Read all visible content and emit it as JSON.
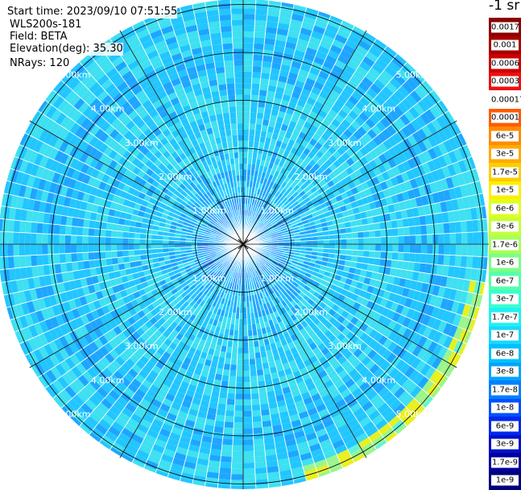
{
  "header": {
    "start_time": "Start time: 2023/09/10 07:51:55",
    "instrument": "WLS200s-181",
    "field": "Field: BETA",
    "elevation": "Elevation(deg): 35.30",
    "nrays": "NRays: 120"
  },
  "colorbar": {
    "units_label": "-1 sr",
    "levels": [
      {
        "label": "0.0017",
        "color": "#8b0000"
      },
      {
        "label": "0.001",
        "color": "#a80000"
      },
      {
        "label": "0.0006",
        "color": "#cc0000"
      },
      {
        "label": "0.0003",
        "color": "#ee1010"
      },
      {
        "label": "0.00017",
        "color": "#ffffff"
      },
      {
        "label": "0.0001",
        "color": "#ff5a00"
      },
      {
        "label": "6e-5",
        "color": "#ff8c00"
      },
      {
        "label": "3e-5",
        "color": "#ffaa00"
      },
      {
        "label": "1.7e-5",
        "color": "#ffcc00"
      },
      {
        "label": "1e-5",
        "color": "#ffee00"
      },
      {
        "label": "6e-6",
        "color": "#e0ff20"
      },
      {
        "label": "3e-6",
        "color": "#c4ff3c"
      },
      {
        "label": "1.7e-6",
        "color": "#a8ff58"
      },
      {
        "label": "1e-6",
        "color": "#7aff84"
      },
      {
        "label": "6e-7",
        "color": "#56ffa8"
      },
      {
        "label": "3e-7",
        "color": "#36ffd0"
      },
      {
        "label": "1.7e-7",
        "color": "#22f0f0"
      },
      {
        "label": "1e-7",
        "color": "#18d8ff"
      },
      {
        "label": "6e-8",
        "color": "#00c0ff"
      },
      {
        "label": "3e-8",
        "color": "#00a4ff"
      },
      {
        "label": "1.7e-8",
        "color": "#0080ff"
      },
      {
        "label": "1e-8",
        "color": "#0050ff"
      },
      {
        "label": "6e-9",
        "color": "#0028ee"
      },
      {
        "label": "3e-9",
        "color": "#0010c8"
      },
      {
        "label": "1.7e-9",
        "color": "#0000a0"
      },
      {
        "label": "1e-9",
        "color": "#00007a"
      }
    ]
  },
  "chart_data": {
    "type": "heatmap",
    "projection": "polar PPI scan",
    "field": "BETA",
    "rays": 120,
    "range_rings_km": [
      1,
      2,
      3,
      4,
      5
    ],
    "ring_labels": [
      "1.00km",
      "2.00km",
      "3.00km",
      "4.00km",
      "5.00km"
    ],
    "max_range_km": 5.08,
    "radial_lines_every_deg": 30,
    "dominant_value_band": "1e-8 to 3e-7 (blue to cyan)",
    "center_value_band": "1e-8 to 3e-8 (medium blue)",
    "edge_value_band": "3e-6 to 1e-5 (yellow-green, lower-right edge)"
  }
}
